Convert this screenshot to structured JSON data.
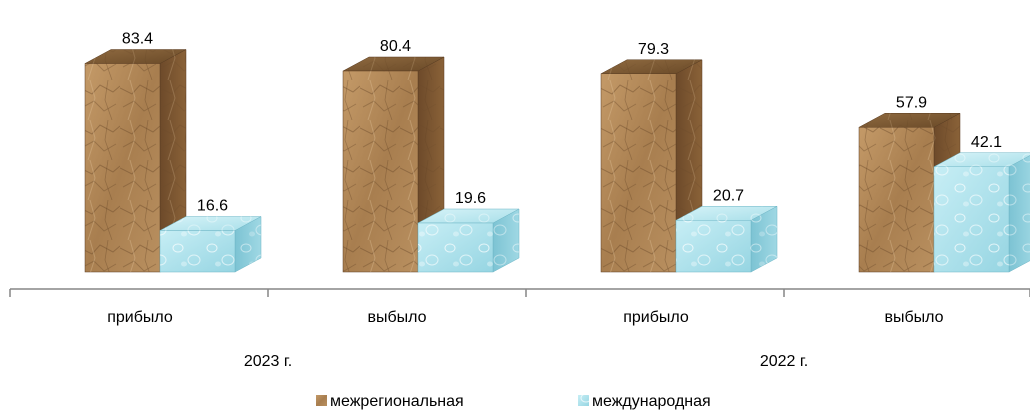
{
  "chart_data": {
    "type": "bar",
    "groups": [
      {
        "label": "2023 г.",
        "categories": [
          "прибыло",
          "выбыло"
        ]
      },
      {
        "label": "2022 г.",
        "categories": [
          "прибыло",
          "выбыло"
        ]
      }
    ],
    "categories": [
      "прибыло",
      "выбыло",
      "прибыло",
      "выбыло"
    ],
    "series": [
      {
        "name": "межрегиональная",
        "values": [
          83.4,
          80.4,
          79.3,
          57.9
        ],
        "color": "#b08a5a"
      },
      {
        "name": "международная",
        "values": [
          16.6,
          19.6,
          20.7,
          42.1
        ],
        "color": "#a8dde8"
      }
    ],
    "ylim": [
      0,
      100
    ],
    "grid": false,
    "legend_position": "bottom",
    "title": "",
    "xlabel": "",
    "ylabel": ""
  }
}
